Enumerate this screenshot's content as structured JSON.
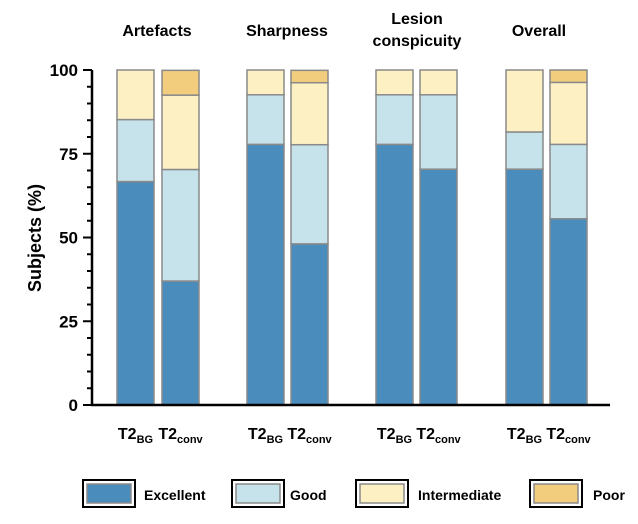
{
  "chart_data": {
    "type": "bar",
    "stacked": true,
    "ylabel": "Subjects (%)",
    "ylim": [
      0,
      100
    ],
    "yticks": [
      0,
      25,
      50,
      75,
      100
    ],
    "groups": [
      "Artefacts",
      "Sharpness",
      "Lesion conspicuity",
      "Overall"
    ],
    "categories": [
      {
        "group": "Artefacts",
        "base": "T2",
        "sub": "BG"
      },
      {
        "group": "Artefacts",
        "base": "T2",
        "sub": "conv"
      },
      {
        "group": "Sharpness",
        "base": "T2",
        "sub": "BG"
      },
      {
        "group": "Sharpness",
        "base": "T2",
        "sub": "conv"
      },
      {
        "group": "Lesion conspicuity",
        "base": "T2",
        "sub": "BG"
      },
      {
        "group": "Lesion conspicuity",
        "base": "T2",
        "sub": "conv"
      },
      {
        "group": "Overall",
        "base": "T2",
        "sub": "BG"
      },
      {
        "group": "Overall",
        "base": "T2",
        "sub": "conv"
      }
    ],
    "series": [
      {
        "name": "Excellent",
        "color": "#4a8dbd",
        "values": [
          66.7,
          37.0,
          77.8,
          48.1,
          77.8,
          70.4,
          70.4,
          55.6
        ]
      },
      {
        "name": "Good",
        "color": "#c6e3ec",
        "values": [
          18.5,
          33.3,
          14.8,
          29.6,
          14.8,
          22.2,
          11.1,
          22.2
        ]
      },
      {
        "name": "Intermediate",
        "color": "#fdf1c4",
        "values": [
          14.8,
          22.2,
          7.4,
          18.5,
          7.4,
          7.4,
          18.5,
          18.5
        ]
      },
      {
        "name": "Poor",
        "color": "#f2cd7d",
        "values": [
          0,
          7.4,
          0,
          3.7,
          0,
          0,
          0,
          3.7
        ]
      }
    ],
    "legend_position": "bottom"
  }
}
